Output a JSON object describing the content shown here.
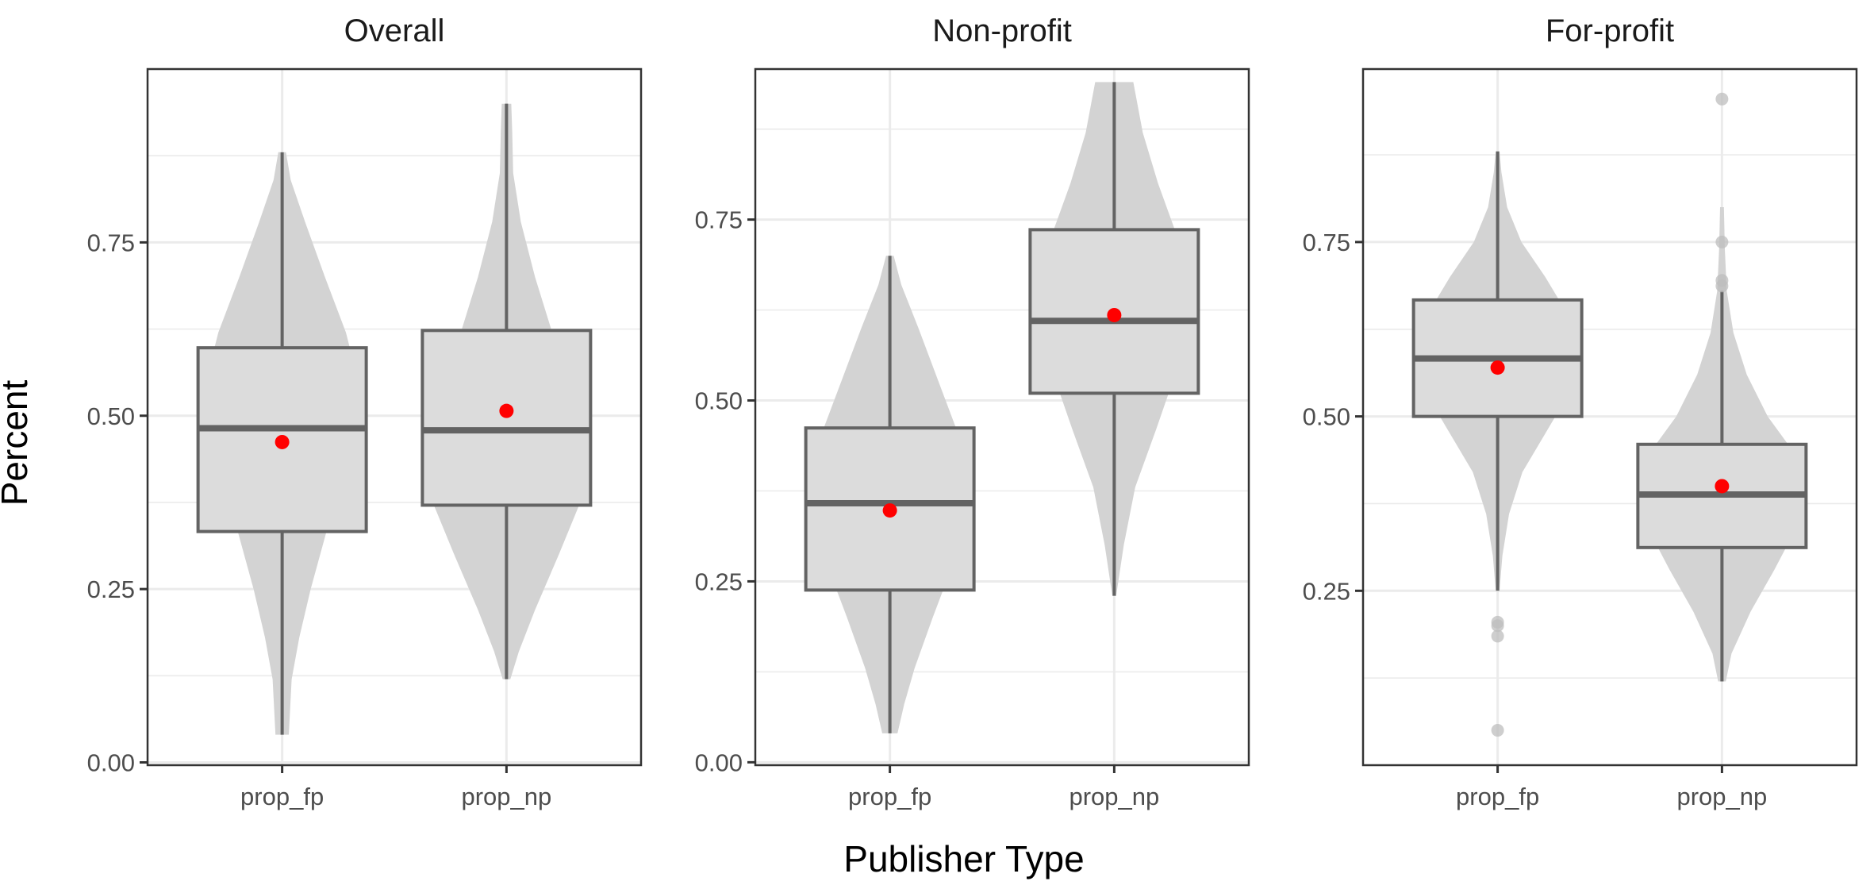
{
  "chart_data": {
    "type": "violin",
    "xlabel": "Publisher Type",
    "ylabel": "Percent",
    "categories": [
      "prop_fp",
      "prop_np"
    ],
    "colors": {
      "violin_fill": "#d3d3d3",
      "box_fill": "#dcdcdc",
      "box_stroke": "#636363",
      "mean_point": "#ff0000",
      "outlier": "#bdbdbd",
      "grid": "#ebebeb",
      "panel_border": "#333333"
    },
    "grid": true,
    "panels": [
      {
        "title": "Overall",
        "ylim": [
          -0.004,
          1.0
        ],
        "yticks": [
          "0.00",
          "0.25",
          "0.50",
          "0.75"
        ],
        "groups": [
          {
            "category": "prop_fp",
            "whisker_low": 0.04,
            "q1": 0.333,
            "median": 0.482,
            "q3": 0.598,
            "whisker_high": 0.88,
            "mean": 0.462,
            "outliers": [],
            "density": [
              [
                0.04,
                0.07
              ],
              [
                0.08,
                0.085
              ],
              [
                0.12,
                0.1
              ],
              [
                0.18,
                0.18
              ],
              [
                0.25,
                0.3
              ],
              [
                0.35,
                0.5
              ],
              [
                0.45,
                0.74
              ],
              [
                0.55,
                0.8
              ],
              [
                0.62,
                0.67
              ],
              [
                0.7,
                0.45
              ],
              [
                0.78,
                0.24
              ],
              [
                0.84,
                0.09
              ],
              [
                0.88,
                0.04
              ]
            ]
          },
          {
            "category": "prop_np",
            "whisker_low": 0.12,
            "q1": 0.371,
            "median": 0.479,
            "q3": 0.623,
            "whisker_high": 0.95,
            "mean": 0.507,
            "outliers": [],
            "density": [
              [
                0.12,
                0.04
              ],
              [
                0.16,
                0.13
              ],
              [
                0.22,
                0.3
              ],
              [
                0.3,
                0.55
              ],
              [
                0.37,
                0.76
              ],
              [
                0.42,
                0.82
              ],
              [
                0.48,
                0.8
              ],
              [
                0.55,
                0.66
              ],
              [
                0.62,
                0.48
              ],
              [
                0.7,
                0.3
              ],
              [
                0.78,
                0.15
              ],
              [
                0.85,
                0.07
              ],
              [
                0.91,
                0.06
              ],
              [
                0.95,
                0.05
              ]
            ]
          }
        ]
      },
      {
        "title": "Non-profit",
        "ylim": [
          -0.004,
          0.958
        ],
        "yticks": [
          "0.00",
          "0.25",
          "0.50",
          "0.75"
        ],
        "groups": [
          {
            "category": "prop_fp",
            "whisker_low": 0.04,
            "q1": 0.238,
            "median": 0.358,
            "q3": 0.462,
            "whisker_high": 0.7,
            "mean": 0.348,
            "outliers": [],
            "density": [
              [
                0.04,
                0.08
              ],
              [
                0.08,
                0.15
              ],
              [
                0.13,
                0.26
              ],
              [
                0.2,
                0.45
              ],
              [
                0.28,
                0.68
              ],
              [
                0.35,
                0.8
              ],
              [
                0.4,
                0.82
              ],
              [
                0.46,
                0.7
              ],
              [
                0.53,
                0.5
              ],
              [
                0.6,
                0.3
              ],
              [
                0.66,
                0.12
              ],
              [
                0.7,
                0.04
              ]
            ]
          },
          {
            "category": "prop_np",
            "whisker_low": 0.23,
            "q1": 0.51,
            "median": 0.61,
            "q3": 0.736,
            "whisker_high": 0.94,
            "mean": 0.618,
            "outliers": [],
            "density": [
              [
                0.23,
                0.02
              ],
              [
                0.3,
                0.1
              ],
              [
                0.38,
                0.22
              ],
              [
                0.46,
                0.44
              ],
              [
                0.54,
                0.65
              ],
              [
                0.6,
                0.8
              ],
              [
                0.66,
                0.8
              ],
              [
                0.72,
                0.68
              ],
              [
                0.8,
                0.46
              ],
              [
                0.87,
                0.3
              ],
              [
                0.94,
                0.2
              ]
            ]
          }
        ]
      },
      {
        "title": "For-profit",
        "ylim": [
          0.0,
          0.998
        ],
        "yticks": [
          "0.25",
          "0.50",
          "0.75"
        ],
        "groups": [
          {
            "category": "prop_fp",
            "whisker_low": 0.25,
            "q1": 0.5,
            "median": 0.583,
            "q3": 0.667,
            "whisker_high": 0.88,
            "mean": 0.57,
            "outliers": [
              0.05,
              0.185,
              0.2,
              0.205
            ],
            "density": [
              [
                0.25,
                0.02
              ],
              [
                0.3,
                0.05
              ],
              [
                0.36,
                0.12
              ],
              [
                0.42,
                0.26
              ],
              [
                0.48,
                0.52
              ],
              [
                0.54,
                0.78
              ],
              [
                0.59,
                0.82
              ],
              [
                0.65,
                0.72
              ],
              [
                0.7,
                0.5
              ],
              [
                0.75,
                0.25
              ],
              [
                0.8,
                0.1
              ],
              [
                0.85,
                0.04
              ],
              [
                0.88,
                0.02
              ]
            ]
          },
          {
            "category": "prop_np",
            "whisker_low": 0.12,
            "q1": 0.312,
            "median": 0.388,
            "q3": 0.46,
            "whisker_high": 0.68,
            "mean": 0.4,
            "outliers": [
              0.687,
              0.695,
              0.75,
              0.955
            ],
            "density": [
              [
                0.12,
                0.04
              ],
              [
                0.16,
                0.1
              ],
              [
                0.22,
                0.3
              ],
              [
                0.28,
                0.55
              ],
              [
                0.34,
                0.78
              ],
              [
                0.39,
                0.88
              ],
              [
                0.44,
                0.8
              ],
              [
                0.5,
                0.48
              ],
              [
                0.56,
                0.26
              ],
              [
                0.62,
                0.12
              ],
              [
                0.68,
                0.05
              ],
              [
                0.74,
                0.03
              ],
              [
                0.8,
                0.02
              ]
            ]
          }
        ]
      }
    ]
  }
}
